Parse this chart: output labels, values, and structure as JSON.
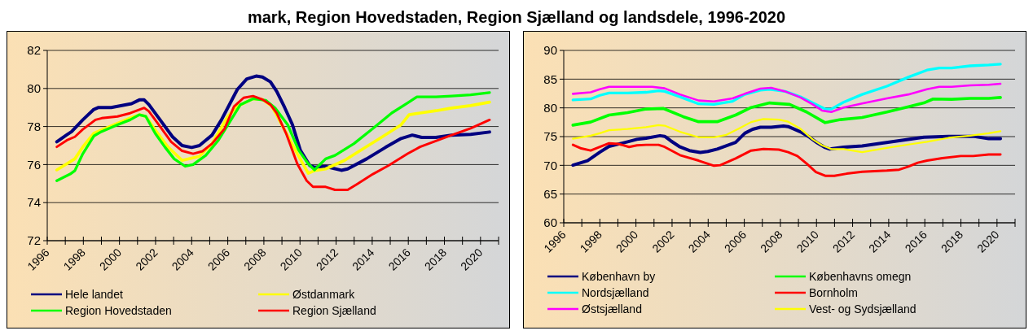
{
  "chart_data": [
    {
      "type": "line",
      "title": "mark, Region Hovedstaden, Region Sjælland og landsdele, 1996-2020",
      "xlim": [
        1996,
        2021
      ],
      "ylim": [
        72,
        82
      ],
      "yticks": [
        72,
        74,
        76,
        78,
        80,
        82
      ],
      "xticks": [
        1996,
        {
          "value": 1997,
          "label": null
        },
        1998,
        {
          "value": 1999,
          "label": null
        },
        2000,
        {
          "value": 2001,
          "label": null
        },
        2002,
        {
          "value": 2003,
          "label": null
        },
        2004,
        {
          "value": 2005,
          "label": null
        },
        2006,
        {
          "value": 2007,
          "label": null
        },
        2008,
        {
          "value": 2009,
          "label": null
        },
        2010,
        {
          "value": 2011,
          "label": null
        },
        2012,
        {
          "value": 2013,
          "label": null
        },
        2014,
        {
          "value": 2015,
          "label": null
        },
        2016,
        {
          "value": 2017,
          "label": null
        },
        2018,
        {
          "value": 2019,
          "label": null
        },
        2020,
        {
          "value": 2021,
          "label": null
        }
      ],
      "grid": "y",
      "legend": "bottom",
      "line_style": "solid",
      "marker": "none",
      "series": [
        {
          "name": "Hele landet",
          "color": "#000080",
          "x": [
            1996.53,
            1997.06,
            1997.35,
            1997.97,
            1998.58,
            1998.84,
            1999.54,
            2000.67,
            2001.1,
            2001.37,
            2001.63,
            2002.25,
            2002.94,
            2003.47,
            2004.0,
            2004.43,
            2005.13,
            2005.65,
            2006.53,
            2007.05,
            2007.57,
            2007.92,
            2008.36,
            2008.71,
            2009.15,
            2009.58,
            2010.02,
            2010.54,
            2010.8,
            2011.42,
            2012.29,
            2012.64,
            2013.69,
            2014.73,
            2015.6,
            2016.22,
            2016.74,
            2017.53,
            2018.4,
            2019.45,
            2020.5
          ],
          "values": [
            77.2,
            77.55,
            77.73,
            78.35,
            78.9,
            79.0,
            79.0,
            79.2,
            79.4,
            79.4,
            79.15,
            78.35,
            77.46,
            77.0,
            76.9,
            77.0,
            77.55,
            78.35,
            79.95,
            80.5,
            80.65,
            80.6,
            80.35,
            79.85,
            79.0,
            78.1,
            76.75,
            75.95,
            75.86,
            75.9,
            75.7,
            75.77,
            76.3,
            76.9,
            77.37,
            77.55,
            77.43,
            77.43,
            77.55,
            77.59,
            77.71
          ]
        },
        {
          "name": "Østdanmark",
          "color": "#ffff00",
          "x": [
            1996.53,
            1997.53,
            1997.97,
            1998.58,
            1999.0,
            1999.89,
            2000.59,
            2001.1,
            2001.46,
            2001.98,
            2002.68,
            2003.47,
            2004.43,
            2005.13,
            2006.0,
            2006.53,
            2007.4,
            2007.92,
            2008.45,
            2009.15,
            2009.85,
            2010.46,
            2010.8,
            2011.42,
            2012.47,
            2013.51,
            2014.56,
            2015.6,
            2016.04,
            2016.65,
            2017.53,
            2018.4,
            2019.45,
            2020.5
          ],
          "values": [
            75.72,
            76.3,
            76.93,
            77.64,
            77.82,
            78.17,
            78.44,
            78.62,
            78.53,
            77.82,
            76.93,
            76.22,
            76.43,
            77.1,
            78.53,
            79.06,
            79.46,
            79.42,
            79.06,
            77.82,
            76.57,
            75.54,
            75.68,
            75.77,
            76.22,
            76.84,
            77.46,
            78.09,
            78.62,
            78.71,
            78.83,
            78.97,
            79.1,
            79.28
          ]
        },
        {
          "name": "Region Hovedstaden",
          "color": "#00ff00",
          "x": [
            1996.53,
            1997.27,
            1997.53,
            1997.97,
            1998.58,
            1999.0,
            1999.89,
            2000.59,
            2001.1,
            2001.46,
            2001.98,
            2002.51,
            2003.03,
            2003.64,
            2004.08,
            2004.78,
            2005.48,
            2006.18,
            2006.7,
            2007.4,
            2008.1,
            2008.62,
            2009.32,
            2009.93,
            2010.46,
            2010.8,
            2011.42,
            2011.94,
            2012.99,
            2014.04,
            2015.08,
            2015.96,
            2016.48,
            2016.83,
            2017.53,
            2018.4,
            2019.45,
            2020.5
          ],
          "values": [
            75.15,
            75.5,
            75.68,
            76.57,
            77.5,
            77.73,
            78.09,
            78.35,
            78.62,
            78.53,
            77.64,
            76.93,
            76.3,
            75.91,
            76.0,
            76.48,
            77.28,
            78.35,
            79.15,
            79.46,
            79.38,
            78.98,
            78.09,
            76.75,
            76.04,
            75.72,
            76.3,
            76.48,
            77.1,
            77.9,
            78.71,
            79.24,
            79.56,
            79.56,
            79.56,
            79.6,
            79.67,
            79.78
          ]
        },
        {
          "name": "Region Sjælland",
          "color": "#ff0000",
          "x": [
            1996.53,
            1997.09,
            1997.53,
            1997.97,
            1998.67,
            1999.02,
            1999.89,
            2000.59,
            2001.1,
            2001.37,
            2001.63,
            2002.25,
            2002.86,
            2003.47,
            2004.08,
            2004.6,
            2005.13,
            2005.83,
            2006.35,
            2006.88,
            2007.4,
            2007.92,
            2008.36,
            2008.71,
            2009.23,
            2009.85,
            2010.37,
            2010.72,
            2011.42,
            2011.94,
            2012.64,
            2013.16,
            2014.04,
            2014.91,
            2015.96,
            2016.65,
            2018.4,
            2019.45,
            2020.5
          ],
          "values": [
            76.93,
            77.28,
            77.46,
            77.85,
            78.35,
            78.44,
            78.53,
            78.7,
            78.89,
            78.98,
            78.8,
            78.0,
            77.2,
            76.72,
            76.57,
            76.7,
            77.1,
            77.9,
            79.06,
            79.51,
            79.6,
            79.42,
            79.15,
            78.7,
            77.64,
            76.04,
            75.15,
            74.83,
            74.83,
            74.67,
            74.67,
            74.97,
            75.5,
            75.95,
            76.57,
            76.93,
            77.55,
            77.9,
            78.35
          ]
        }
      ]
    },
    {
      "type": "line",
      "xlim": [
        1996,
        2021
      ],
      "ylim": [
        60,
        90
      ],
      "yticks": [
        60,
        65,
        70,
        75,
        80,
        85,
        90
      ],
      "xticks": [
        1996,
        {
          "value": 1997,
          "label": null
        },
        1998,
        {
          "value": 1999,
          "label": null
        },
        2000,
        {
          "value": 2001,
          "label": null
        },
        2002,
        {
          "value": 2003,
          "label": null
        },
        2004,
        {
          "value": 2005,
          "label": null
        },
        2006,
        {
          "value": 2007,
          "label": null
        },
        2008,
        {
          "value": 2009,
          "label": null
        },
        2010,
        {
          "value": 2011,
          "label": null
        },
        2012,
        {
          "value": 2013,
          "label": null
        },
        2014,
        {
          "value": 2015,
          "label": null
        },
        2016,
        {
          "value": 2017,
          "label": null
        },
        2018,
        {
          "value": 2019,
          "label": null
        },
        2020,
        {
          "value": 2021,
          "label": null
        }
      ],
      "grid": "y",
      "legend": "bottom",
      "line_style": "solid",
      "marker": "none",
      "series": [
        {
          "name": "København by",
          "color": "#000080",
          "x": [
            1996.51,
            1997.32,
            1998.0,
            1998.51,
            1999.54,
            2000.05,
            2000.56,
            2001.33,
            2001.59,
            2001.93,
            2002.44,
            2002.96,
            2003.56,
            2003.98,
            2004.5,
            2005.52,
            2006.03,
            2006.46,
            2006.89,
            2007.49,
            2008.17,
            2008.43,
            2009.11,
            2009.62,
            2010.05,
            2010.48,
            2010.74,
            2011.5,
            2012.53,
            2013.56,
            2014.75,
            2015.95,
            2017.32,
            2018.68,
            2019.54,
            2020.19
          ],
          "values": [
            70.03,
            70.82,
            72.3,
            73.3,
            74.1,
            74.52,
            74.73,
            75.16,
            75.05,
            74.26,
            73.2,
            72.57,
            72.25,
            72.41,
            72.83,
            73.99,
            75.58,
            76.27,
            76.63,
            76.63,
            76.85,
            76.74,
            75.84,
            74.89,
            73.89,
            73.1,
            72.83,
            73.15,
            73.36,
            73.84,
            74.36,
            74.89,
            75.05,
            75.05,
            74.63,
            74.63
          ]
        },
        {
          "name": "Københavns omegn",
          "color": "#00ff00",
          "x": [
            1996.51,
            1997.49,
            1998.51,
            1999.54,
            2000.56,
            2001.5,
            2002.61,
            2003.47,
            2004.5,
            2005.52,
            2006.38,
            2007.4,
            2008.51,
            2009.45,
            2010.48,
            2011.33,
            2012.53,
            2013.9,
            2014.92,
            2015.95,
            2016.46,
            2017.49,
            2018.51,
            2019.54,
            2020.19
          ],
          "values": [
            77.0,
            77.53,
            78.75,
            79.17,
            79.8,
            79.91,
            78.48,
            77.59,
            77.59,
            78.75,
            80.07,
            80.86,
            80.6,
            79.28,
            77.43,
            77.96,
            78.33,
            79.28,
            80.07,
            80.86,
            81.55,
            81.5,
            81.65,
            81.65,
            81.81
          ]
        },
        {
          "name": "Nordsjælland",
          "color": "#00ffff",
          "x": [
            1996.51,
            1997.49,
            1998.0,
            1998.51,
            1999.54,
            2000.56,
            2001.25,
            2001.59,
            2002.44,
            2003.47,
            2004.32,
            2005.35,
            2006.03,
            2006.89,
            2007.4,
            2008.26,
            2009.11,
            2009.79,
            2010.48,
            2010.82,
            2011.5,
            2012.53,
            2013.9,
            2015.09,
            2016.12,
            2016.8,
            2017.49,
            2018.51,
            2019.54,
            2020.19
          ],
          "values": [
            81.39,
            81.55,
            82.18,
            82.6,
            82.6,
            82.71,
            82.97,
            82.87,
            81.92,
            80.7,
            80.6,
            81.13,
            82.34,
            83.08,
            83.24,
            82.87,
            81.92,
            80.86,
            79.8,
            79.8,
            80.97,
            82.34,
            83.77,
            85.35,
            86.57,
            86.94,
            86.94,
            87.31,
            87.46,
            87.62
          ]
        },
        {
          "name": "Bornholm",
          "color": "#ff0000",
          "x": [
            1996.51,
            1996.97,
            1997.49,
            1998.0,
            1998.51,
            1999.02,
            1999.62,
            2000.05,
            2000.56,
            2001.25,
            2001.59,
            2002.44,
            2003.47,
            2004.32,
            2004.67,
            2005.52,
            2006.38,
            2007.06,
            2007.91,
            2008.43,
            2008.94,
            2009.45,
            2009.97,
            2010.48,
            2010.99,
            2011.67,
            2012.53,
            2013.9,
            2014.58,
            2015.09,
            2015.61,
            2016.12,
            2016.97,
            2017.99,
            2018.68,
            2019.54,
            2020.19
          ],
          "values": [
            73.57,
            72.94,
            72.57,
            73.2,
            73.84,
            73.73,
            73.2,
            73.47,
            73.57,
            73.57,
            73.2,
            71.77,
            70.82,
            69.93,
            70.03,
            71.19,
            72.57,
            72.83,
            72.73,
            72.3,
            71.62,
            70.3,
            68.82,
            68.18,
            68.18,
            68.55,
            68.87,
            69.08,
            69.24,
            69.77,
            70.45,
            70.82,
            71.25,
            71.62,
            71.62,
            71.88,
            71.88
          ]
        },
        {
          "name": "Østsjælland",
          "color": "#ff00ff",
          "x": [
            1996.51,
            1997.49,
            1998.0,
            1998.51,
            1999.54,
            2000.9,
            2001.59,
            2002.44,
            2003.47,
            2004.32,
            2005.35,
            2006.03,
            2006.89,
            2007.49,
            2008.26,
            2009.11,
            2009.79,
            2010.31,
            2010.82,
            2011.5,
            2012.53,
            2013.9,
            2015.09,
            2016.12,
            2016.8,
            2017.49,
            2018.51,
            2019.54,
            2020.19
          ],
          "values": [
            82.45,
            82.71,
            83.24,
            83.66,
            83.66,
            83.66,
            83.4,
            82.34,
            81.28,
            81.13,
            81.65,
            82.45,
            83.34,
            83.5,
            82.87,
            81.81,
            80.6,
            79.54,
            79.28,
            80.07,
            80.76,
            81.65,
            82.34,
            83.24,
            83.66,
            83.66,
            83.92,
            84.03,
            84.19
          ]
        },
        {
          "name": "Vest- og Sydsjælland",
          "color": "#ffff00",
          "x": [
            1996.51,
            1997.49,
            1998.0,
            1998.51,
            1999.54,
            2000.56,
            2001.25,
            2001.59,
            2002.44,
            2003.47,
            2004.32,
            2005.01,
            2005.69,
            2006.38,
            2007.06,
            2007.91,
            2008.43,
            2009.11,
            2009.79,
            2010.31,
            2010.82,
            2011.5,
            2012.53,
            2013.9,
            2015.09,
            2016.12,
            2017.32,
            2018.51,
            2019.54,
            2020.19
          ],
          "values": [
            74.63,
            75.16,
            75.58,
            76.11,
            76.32,
            76.63,
            77.0,
            76.9,
            75.84,
            74.89,
            74.89,
            75.31,
            76.37,
            77.53,
            78.06,
            77.96,
            77.59,
            76.37,
            74.52,
            73.47,
            72.83,
            72.83,
            72.3,
            73.04,
            73.62,
            74.1,
            74.79,
            75.16,
            75.58,
            75.95
          ]
        }
      ]
    }
  ]
}
